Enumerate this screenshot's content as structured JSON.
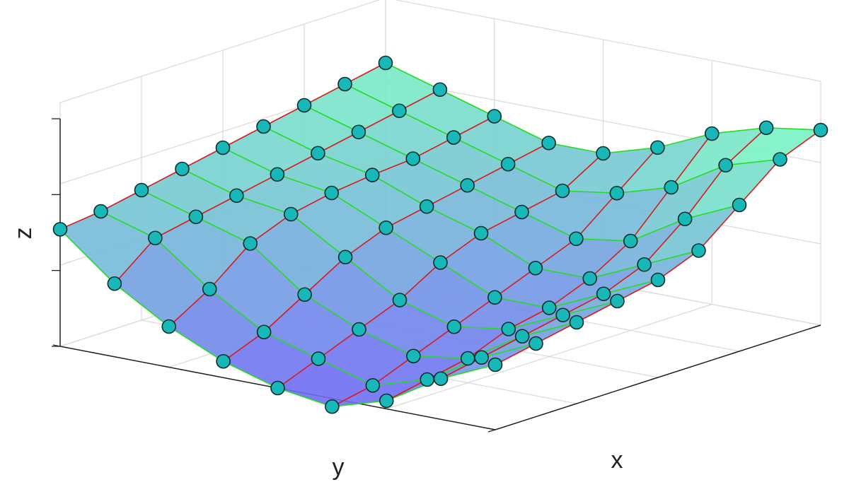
{
  "chart_data": {
    "type": "surface",
    "title": "",
    "xlabel": "x",
    "ylabel": "y",
    "zlabel": "z",
    "grid": true,
    "tick_labels_shown": false,
    "colors": {
      "surface_high": "#7af2c4",
      "surface_low": "#6f6cf5",
      "x_curves": "#d81b1b",
      "y_curves": "#22dd22",
      "markers": "#18b8b8",
      "marker_edge": "#0b2b2b",
      "grid": "#d9d9d9",
      "axes": "#222222"
    },
    "x": [
      0,
      1,
      2,
      3,
      4,
      5,
      6,
      7,
      8
    ],
    "y": [
      0,
      1,
      2,
      3,
      4,
      5,
      6,
      7,
      8
    ],
    "z": [
      [
        0.72,
        0.45,
        0.25,
        0.1,
        0.0,
        -0.05,
        0.05,
        0.25,
        0.4
      ],
      [
        0.75,
        0.65,
        0.4,
        0.2,
        0.1,
        0.0,
        0.1,
        0.3,
        0.45
      ],
      [
        0.8,
        0.7,
        0.6,
        0.35,
        0.2,
        0.1,
        0.15,
        0.35,
        0.5
      ],
      [
        0.85,
        0.75,
        0.7,
        0.5,
        0.3,
        0.2,
        0.25,
        0.4,
        0.55
      ],
      [
        0.9,
        0.8,
        0.75,
        0.6,
        0.45,
        0.3,
        0.3,
        0.45,
        0.6
      ],
      [
        0.95,
        0.85,
        0.78,
        0.65,
        0.55,
        0.4,
        0.4,
        0.55,
        0.7
      ],
      [
        1.0,
        0.9,
        0.8,
        0.7,
        0.6,
        0.5,
        0.55,
        0.75,
        0.9
      ],
      [
        1.05,
        0.95,
        0.85,
        0.75,
        0.65,
        0.7,
        0.8,
        1.0,
        1.1
      ],
      [
        1.1,
        1.0,
        0.9,
        0.8,
        0.8,
        0.9,
        1.05,
        1.15,
        1.2
      ]
    ],
    "xlim": [
      0,
      8
    ],
    "ylim": [
      0,
      8
    ],
    "zlim": [
      0,
      1.5
    ]
  }
}
